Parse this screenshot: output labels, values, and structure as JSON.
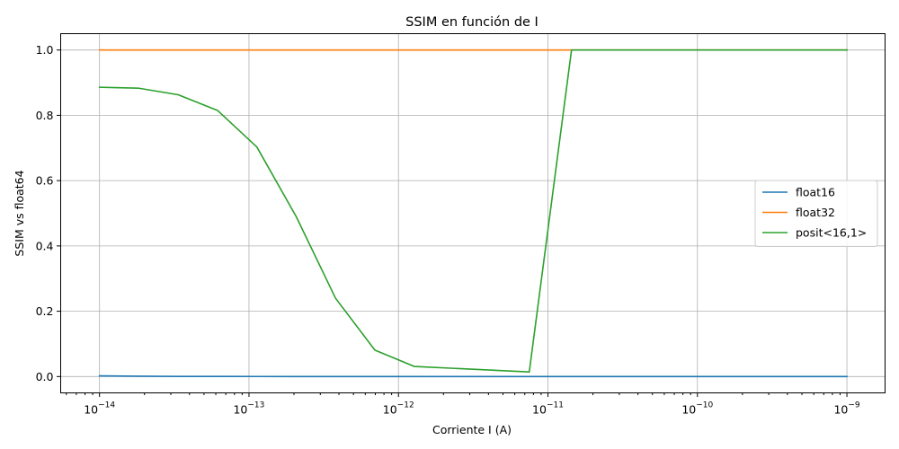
{
  "chart_data": {
    "type": "line",
    "title": "SSIM en función de I",
    "xlabel": "Corriente I (A)",
    "ylabel": "SSIM vs float64",
    "x_scale": "log",
    "xlim": [
      5.5e-15,
      1.8e-09
    ],
    "ylim": [
      -0.05,
      1.05
    ],
    "x_ticks": [
      {
        "value": 1e-14,
        "base": "10",
        "exp": "−14"
      },
      {
        "value": 1e-13,
        "base": "10",
        "exp": "−13"
      },
      {
        "value": 1e-12,
        "base": "10",
        "exp": "−12"
      },
      {
        "value": 1e-11,
        "base": "10",
        "exp": "−11"
      },
      {
        "value": 1e-10,
        "base": "10",
        "exp": "−10"
      },
      {
        "value": 1e-09,
        "base": "10",
        "exp": "−9"
      }
    ],
    "y_ticks": [
      {
        "value": 0.0,
        "label": "0.0"
      },
      {
        "value": 0.2,
        "label": "0.2"
      },
      {
        "value": 0.4,
        "label": "0.4"
      },
      {
        "value": 0.6,
        "label": "0.6"
      },
      {
        "value": 0.8,
        "label": "0.8"
      },
      {
        "value": 1.0,
        "label": "1.0"
      }
    ],
    "grid": true,
    "legend_position": "center-right",
    "x": [
      1e-14,
      1.833e-14,
      3.36e-14,
      6.16e-14,
      1.129e-13,
      2.069e-13,
      3.793e-13,
      6.952e-13,
      1.274e-12,
      7.5e-12,
      1.438e-11,
      2.637e-11,
      4.833e-11,
      8.859e-11,
      1.624e-10,
      2.976e-10,
      5.456e-10,
      1e-09
    ],
    "series": [
      {
        "name": "float16",
        "color": "#1f77b4",
        "values": [
          0.002,
          0.001,
          0.0005,
          0.0003,
          0.0002,
          0.0001,
          0.0001,
          0.0001,
          0.0001,
          0.0001,
          0.0001,
          0.0001,
          0.0001,
          0.0001,
          0.0001,
          0.0001,
          0.0001,
          0.0001
        ]
      },
      {
        "name": "float32",
        "color": "#ff7f0e",
        "values": [
          1.0,
          1.0,
          1.0,
          1.0,
          1.0,
          1.0,
          1.0,
          1.0,
          1.0,
          1.0,
          1.0,
          1.0,
          1.0,
          1.0,
          1.0,
          1.0,
          1.0,
          1.0
        ]
      },
      {
        "name": "posit<16,1>",
        "color": "#2ca02c",
        "values": [
          0.886,
          0.883,
          0.863,
          0.815,
          0.703,
          0.49,
          0.24,
          0.081,
          0.031,
          0.014,
          1.0,
          1.0,
          1.0,
          1.0,
          1.0,
          1.0,
          1.0,
          1.0
        ]
      }
    ]
  }
}
